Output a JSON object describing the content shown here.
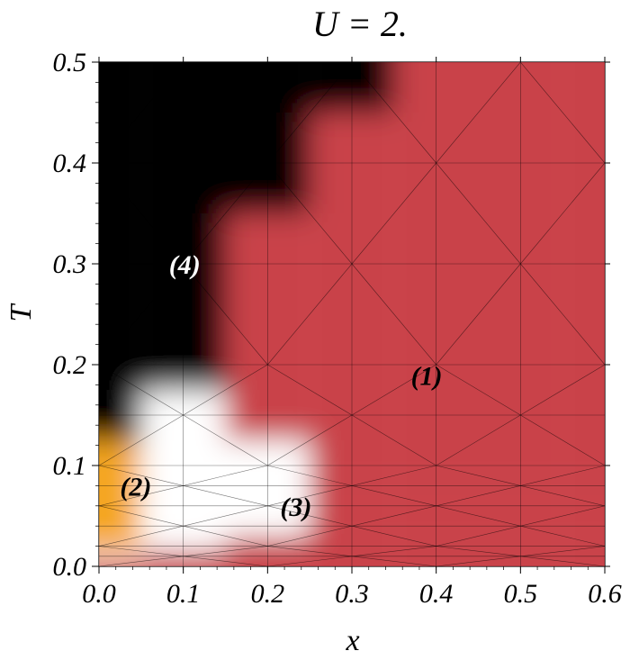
{
  "chart_data": {
    "type": "heatmap",
    "title": "U = 2.",
    "xlabel": "x",
    "ylabel": "T",
    "xlim": [
      0.0,
      0.6
    ],
    "ylim": [
      0.0,
      0.5
    ],
    "x_ticks": [
      "0.0",
      "0.1",
      "0.2",
      "0.3",
      "0.4",
      "0.5",
      "0.6"
    ],
    "y_ticks": [
      "0.0",
      "0.1",
      "0.2",
      "0.3",
      "0.4",
      "0.5"
    ],
    "grid": true,
    "phase_colors": {
      "1": "#c9434a",
      "2": "#f5a623",
      "3": "#ffffff",
      "4": "#000000"
    },
    "grid_x": [
      0.0,
      0.1,
      0.2,
      0.3,
      0.4,
      0.5,
      0.6
    ],
    "grid_y": [
      0.0,
      0.01,
      0.02,
      0.04,
      0.06,
      0.08,
      0.1,
      0.15,
      0.2,
      0.3,
      0.4,
      0.5
    ],
    "phase_grid": [
      [
        1,
        1,
        1,
        1,
        1,
        1,
        1
      ],
      [
        3,
        1,
        1,
        1,
        1,
        1,
        1
      ],
      [
        2,
        3,
        1,
        1,
        1,
        1,
        1
      ],
      [
        2,
        3,
        3,
        1,
        1,
        1,
        1
      ],
      [
        2,
        3,
        3,
        1,
        1,
        1,
        1
      ],
      [
        2,
        3,
        3,
        1,
        1,
        1,
        1
      ],
      [
        2,
        3,
        3,
        1,
        1,
        1,
        1
      ],
      [
        4,
        3,
        1,
        1,
        1,
        1,
        1
      ],
      [
        4,
        4,
        1,
        1,
        1,
        1,
        1
      ],
      [
        4,
        4,
        1,
        1,
        1,
        1,
        1
      ],
      [
        4,
        4,
        4,
        1,
        1,
        1,
        1
      ],
      [
        4,
        4,
        4,
        4,
        1,
        1,
        1
      ]
    ],
    "annotations": [
      {
        "text": "(1)",
        "x": 0.37,
        "y": 0.18,
        "color": "#000000"
      },
      {
        "text": "(2)",
        "x": 0.025,
        "y": 0.07,
        "color": "#000000"
      },
      {
        "text": "(3)",
        "x": 0.215,
        "y": 0.05,
        "color": "#000000"
      },
      {
        "text": "(4)",
        "x": 0.083,
        "y": 0.29,
        "color": "#ffffff"
      }
    ]
  }
}
